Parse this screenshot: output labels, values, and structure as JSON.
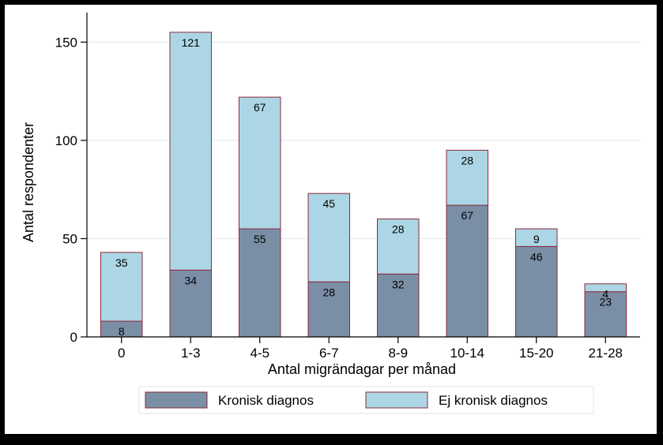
{
  "chart_data": {
    "type": "bar",
    "stacked": true,
    "categories": [
      "0",
      "1-3",
      "4-5",
      "6-7",
      "8-9",
      "10-14",
      "15-20",
      "21-28"
    ],
    "series": [
      {
        "name": "Kronisk diagnos",
        "values": [
          8,
          34,
          55,
          28,
          32,
          67,
          46,
          23
        ],
        "color": "#7a8fa6"
      },
      {
        "name": "Ej kronisk diagnos",
        "values": [
          35,
          121,
          67,
          45,
          28,
          28,
          9,
          4
        ],
        "color": "#acd6e5"
      }
    ],
    "xlabel": "Antal migrändagar per månad",
    "ylabel": "Antal respondenter",
    "ylim": [
      0,
      165
    ],
    "yticks": [
      0,
      50,
      100,
      150
    ],
    "grid": true,
    "legend_position": "bottom",
    "bar_outline_color": "#8b2a3a"
  }
}
